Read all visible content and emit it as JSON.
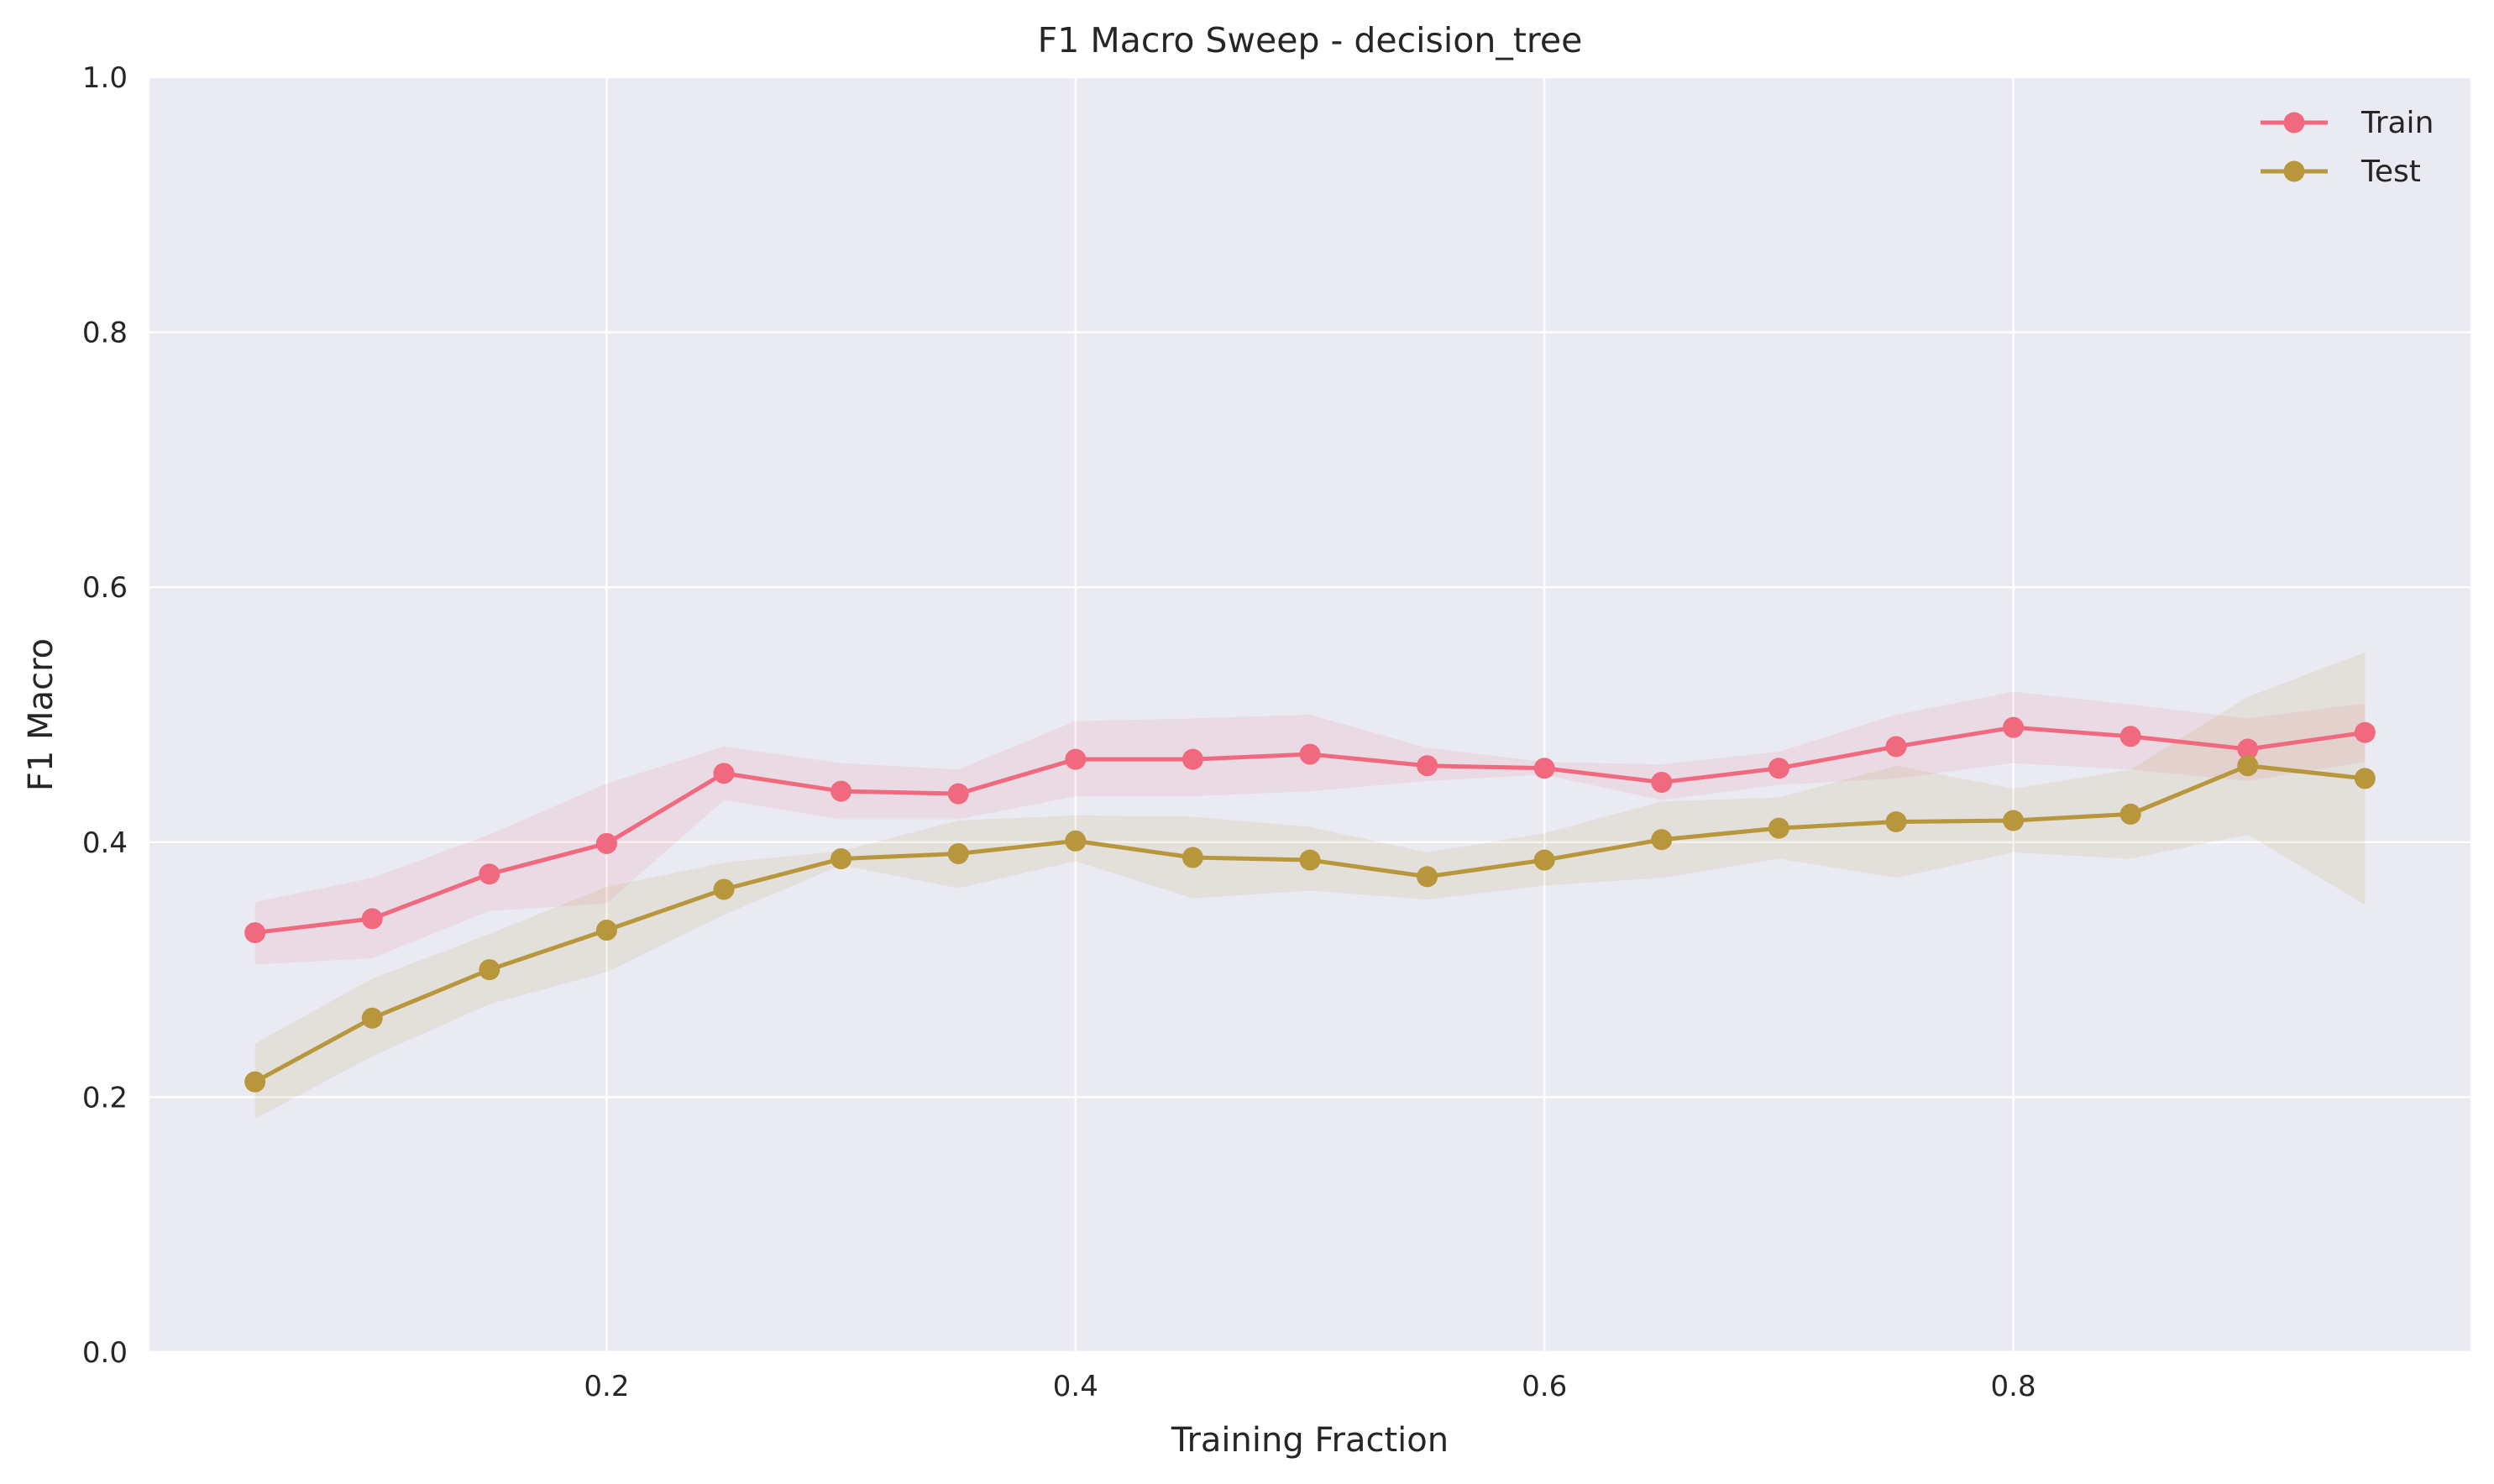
{
  "chart_data": {
    "type": "line",
    "title": "F1 Macro Sweep - decision_tree",
    "xlabel": "Training Fraction",
    "ylabel": "F1 Macro",
    "xlim": [
      0.005,
      0.995
    ],
    "ylim": [
      0,
      1
    ],
    "xticks": [
      0.2,
      0.4,
      0.6,
      0.8
    ],
    "xtick_labels": [
      "0.2",
      "0.4",
      "0.6",
      "0.8"
    ],
    "yticks": [
      0.0,
      0.2,
      0.4,
      0.6,
      0.8,
      1.0
    ],
    "ytick_labels": [
      "0.0",
      "0.2",
      "0.4",
      "0.6",
      "0.8",
      "1.0"
    ],
    "grid": true,
    "legend_position": "top-right",
    "x": [
      0.05,
      0.1,
      0.15,
      0.2,
      0.25,
      0.3,
      0.35,
      0.4,
      0.45,
      0.5,
      0.55,
      0.6,
      0.65,
      0.7,
      0.75,
      0.8,
      0.85,
      0.9,
      0.95
    ],
    "series": [
      {
        "name": "Train",
        "color": "#f0697f",
        "values": [
          0.329,
          0.34,
          0.375,
          0.399,
          0.454,
          0.44,
          0.438,
          0.465,
          0.465,
          0.469,
          0.46,
          0.458,
          0.447,
          0.458,
          0.475,
          0.49,
          0.483,
          0.473,
          0.486
        ],
        "lower": [
          0.304,
          0.309,
          0.346,
          0.352,
          0.433,
          0.418,
          0.418,
          0.436,
          0.436,
          0.44,
          0.448,
          0.453,
          0.433,
          0.445,
          0.45,
          0.462,
          0.457,
          0.448,
          0.463
        ],
        "upper": [
          0.353,
          0.372,
          0.406,
          0.446,
          0.475,
          0.462,
          0.457,
          0.495,
          0.497,
          0.5,
          0.474,
          0.463,
          0.461,
          0.471,
          0.5,
          0.518,
          0.508,
          0.497,
          0.509
        ]
      },
      {
        "name": "Test",
        "color": "#b8963c",
        "values": [
          0.212,
          0.262,
          0.3,
          0.331,
          0.363,
          0.387,
          0.391,
          0.401,
          0.388,
          0.386,
          0.373,
          0.386,
          0.402,
          0.411,
          0.416,
          0.417,
          0.422,
          0.46,
          0.45
        ],
        "lower": [
          0.183,
          0.232,
          0.273,
          0.298,
          0.343,
          0.382,
          0.364,
          0.385,
          0.356,
          0.362,
          0.355,
          0.366,
          0.372,
          0.387,
          0.372,
          0.392,
          0.387,
          0.406,
          0.351
        ],
        "upper": [
          0.242,
          0.293,
          0.328,
          0.365,
          0.384,
          0.393,
          0.417,
          0.421,
          0.42,
          0.412,
          0.392,
          0.407,
          0.432,
          0.435,
          0.46,
          0.442,
          0.457,
          0.514,
          0.549
        ]
      }
    ]
  }
}
